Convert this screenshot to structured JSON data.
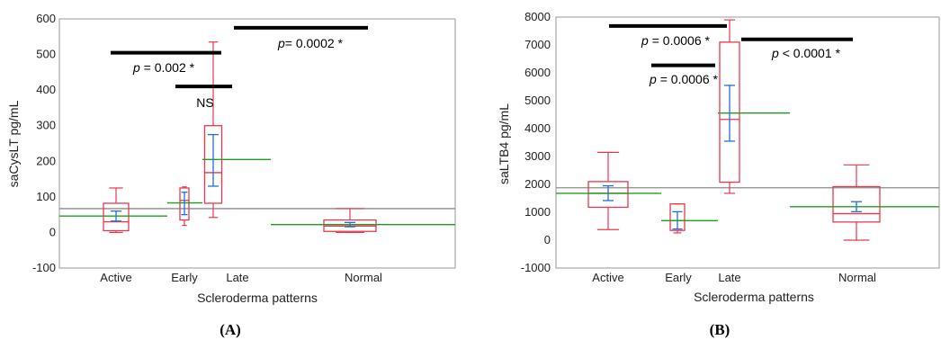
{
  "colors": {
    "box": "#e8384f",
    "mean_line": "#1ea01e",
    "ci": "#1f6fd6",
    "grand_mean": "#8c8c8c",
    "bar": "#000000",
    "frame": "#9a9a9a"
  },
  "chart_data": [
    {
      "type": "box",
      "panel_label": "(A)",
      "ylabel": "saCysLT pg/mL",
      "xlabel": "Scleroderma patterns",
      "ylim": [
        -100,
        600
      ],
      "yticks": [
        -100,
        0,
        100,
        200,
        300,
        400,
        500,
        600
      ],
      "grand_mean": 67,
      "categories": [
        "Active",
        "Early",
        "Late",
        "Normal"
      ],
      "groups": [
        {
          "name": "Active",
          "min": 0,
          "q1": 5,
          "median": 30,
          "q3": 82,
          "max": 125,
          "mean": 46,
          "ci": [
            32,
            60
          ]
        },
        {
          "name": "Early",
          "min": 20,
          "q1": 35,
          "median": 90,
          "q3": 125,
          "max": 128,
          "mean": 83,
          "ci": [
            50,
            113
          ]
        },
        {
          "name": "Late",
          "min": 42,
          "q1": 82,
          "median": 168,
          "q3": 300,
          "max": 535,
          "mean": 205,
          "ci": [
            130,
            275
          ]
        },
        {
          "name": "Normal",
          "min": 0,
          "q1": 3,
          "median": 18,
          "q3": 35,
          "max": 67,
          "mean": 22,
          "ci": [
            16,
            28
          ]
        }
      ],
      "annotations": [
        {
          "text": "p = 0.002 *",
          "bar_y": 505
        },
        {
          "text": "NS",
          "bar_y": 410
        },
        {
          "text": "p= 0.0002 *",
          "bar_y": 575
        }
      ]
    },
    {
      "type": "box",
      "panel_label": "(B)",
      "ylabel": "saLTB4 pg/mL",
      "xlabel": "Scleroderma patterns",
      "ylim": [
        -1000,
        8000
      ],
      "yticks": [
        -1000,
        0,
        1000,
        2000,
        3000,
        4000,
        5000,
        6000,
        7000,
        8000
      ],
      "grand_mean": 1880,
      "categories": [
        "Active",
        "Early",
        "Late",
        "Normal"
      ],
      "groups": [
        {
          "name": "Active",
          "min": 380,
          "q1": 1180,
          "median": 1680,
          "q3": 2100,
          "max": 3150,
          "mean": 1680,
          "ci": [
            1420,
            1950
          ]
        },
        {
          "name": "Early",
          "min": 260,
          "q1": 350,
          "median": 700,
          "q3": 1300,
          "max": 1300,
          "mean": 700,
          "ci": [
            400,
            1020
          ]
        },
        {
          "name": "Late",
          "min": 1680,
          "q1": 2080,
          "median": 4330,
          "q3": 7100,
          "max": 7900,
          "mean": 4560,
          "ci": [
            3550,
            5550
          ]
        },
        {
          "name": "Normal",
          "min": 0,
          "q1": 650,
          "median": 950,
          "q3": 1920,
          "max": 2700,
          "mean": 1200,
          "ci": [
            1020,
            1380
          ]
        }
      ],
      "annotations": [
        {
          "text": "p = 0.0006 *",
          "bar_y": 7680
        },
        {
          "text": "p = 0.0006 *",
          "bar_y": 6270
        },
        {
          "text": "p < 0.0001 *",
          "bar_y": 7200
        }
      ]
    }
  ]
}
